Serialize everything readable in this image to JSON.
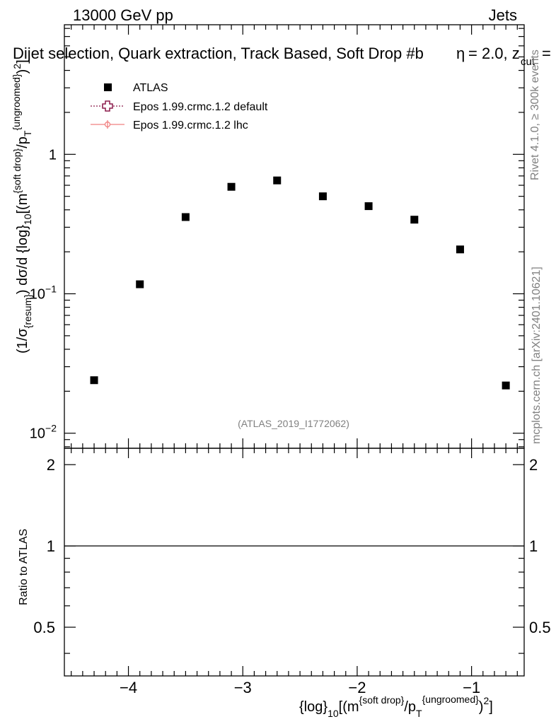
{
  "header": {
    "left": "13000 GeV pp",
    "right": "Jets",
    "title": "Dijet selection, Quark extraction, Track Based, Soft Drop #b",
    "title_right": "= 2.0, z",
    "title_right_sub": "cut",
    "title_right_end": "=",
    "title_right_prefix": "η"
  },
  "side_labels": {
    "rivet": "Rivet 4.1.0, ≥ 300k events",
    "mcplots": "mcplots.cern.ch [arXiv:2401.10621]"
  },
  "watermark": "(ATLAS_2019_I1772062)",
  "legend": [
    {
      "label": "ATLAS",
      "marker": "square",
      "color": "#000000"
    },
    {
      "label": "Epos 1.99.crmc.1.2 default",
      "marker": "cross",
      "color": "#8b1a4a"
    },
    {
      "label": "Epos 1.99.crmc.1.2 lhc",
      "marker": "circle-line",
      "color": "#f08080"
    }
  ],
  "axes": {
    "y_main": {
      "p1": "(1/σ",
      "p1_sub": "{resum}",
      "p2": ") dσ/d {log}",
      "p2_sub": "10",
      "p3": "[(m",
      "p3_sup": "{soft drop}",
      "p4": "/p",
      "p4_sub": "T",
      "p4_sup": "{ungroomed}",
      "p5": ")",
      "p5_sup": "2",
      "p6": "]"
    },
    "y_ratio": "Ratio to ATLAS",
    "x": {
      "p1": "{log}",
      "p1_sub": "10",
      "p2": "[(m",
      "p2_sup": "{soft drop}",
      "p3": "/p",
      "p3_sub": "T",
      "p3_sup": "{ungroomed}",
      "p4": ")",
      "p4_sup": "2",
      "p5": "]"
    },
    "y_main_ticks": [
      {
        "value": 1,
        "base": "1",
        "exp": ""
      },
      {
        "value": 0.1,
        "base": "10",
        "exp": "−1"
      },
      {
        "value": 0.01,
        "base": "10",
        "exp": "−2"
      }
    ],
    "y_ratio_ticks": [
      {
        "value": 2,
        "label": "2"
      },
      {
        "value": 1,
        "label": "1"
      },
      {
        "value": 0.5,
        "label": "0.5"
      }
    ],
    "x_ticks": [
      {
        "value": -4,
        "label": "−4"
      },
      {
        "value": -3,
        "label": "−3"
      },
      {
        "value": -2,
        "label": "−2"
      },
      {
        "value": -1,
        "label": "−1"
      }
    ]
  },
  "chart_data": {
    "type": "scatter",
    "xlim": [
      -4.56,
      -0.54
    ],
    "ylim": [
      0.0078,
      8.5
    ],
    "y_scale": "log",
    "ratio_ylim": [
      0.33,
      2.3
    ],
    "ratio_y_scale": "log",
    "series": [
      {
        "name": "ATLAS",
        "x": [
          -4.3,
          -3.9,
          -3.5,
          -3.1,
          -2.7,
          -2.3,
          -1.9,
          -1.5,
          -1.1,
          -0.7
        ],
        "y": [
          0.024,
          0.117,
          0.355,
          0.585,
          0.65,
          0.5,
          0.425,
          0.34,
          0.208,
          0.022
        ]
      }
    ],
    "ratio_reference": 1
  }
}
